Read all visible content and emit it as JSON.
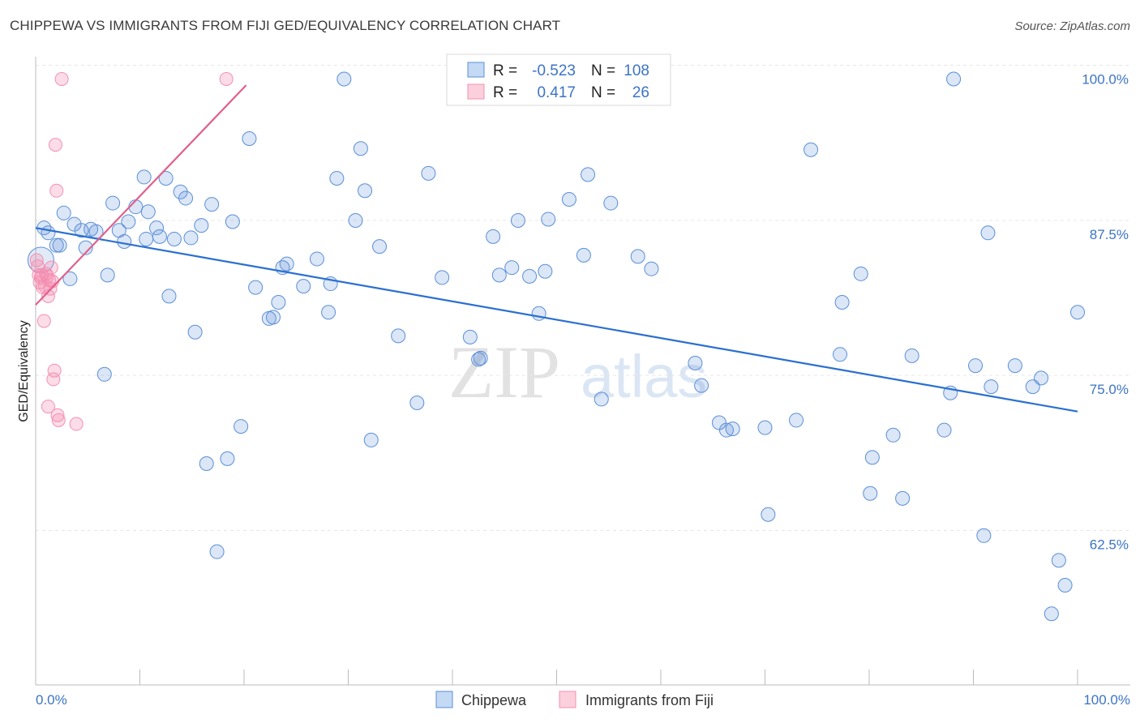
{
  "chart_data": {
    "type": "scatter",
    "title": "CHIPPEWA VS IMMIGRANTS FROM FIJI GED/EQUIVALENCY CORRELATION CHART",
    "source": "Source: ZipAtlas.com",
    "xlabel": "",
    "ylabel": "GED/Equivalency",
    "xlim": [
      0,
      100
    ],
    "ylim": [
      53,
      101
    ],
    "x_tick_labels": {
      "left": "0.0%",
      "right": "100.0%"
    },
    "y_ticks": [
      {
        "value": 62.5,
        "label": "62.5%"
      },
      {
        "value": 75.0,
        "label": "75.0%"
      },
      {
        "value": 87.5,
        "label": "87.5%"
      },
      {
        "value": 100.0,
        "label": "100.0%"
      }
    ],
    "watermark": {
      "left": "ZIP",
      "right": "atlas"
    },
    "colors": {
      "chippewa": "#5b8fd8",
      "chippewa_line": "#2a6fd0",
      "fiji": "#f48fb1",
      "fiji_line": "#e0608c",
      "tick_text": "#3c74c4"
    },
    "legend": {
      "r_label": "R =",
      "n_label": "N =",
      "entries": [
        {
          "name": "Chippewa",
          "r": "-0.523",
          "n": "108"
        },
        {
          "name": "Immigrants from Fiji",
          "r": "0.417",
          "n": "26"
        }
      ]
    },
    "series": [
      {
        "name": "Chippewa",
        "trend": {
          "x": [
            0,
            100
          ],
          "y": [
            88.0,
            73.2
          ]
        },
        "points": [
          [
            0.5,
            85.4
          ],
          [
            0.8,
            88.0
          ],
          [
            1.2,
            87.6
          ],
          [
            2.0,
            86.6
          ],
          [
            2.3,
            86.6
          ],
          [
            2.7,
            89.2
          ],
          [
            3.3,
            83.9
          ],
          [
            3.7,
            88.3
          ],
          [
            4.4,
            87.8
          ],
          [
            4.8,
            86.4
          ],
          [
            5.3,
            87.9
          ],
          [
            5.8,
            87.7
          ],
          [
            6.6,
            76.2
          ],
          [
            6.9,
            84.2
          ],
          [
            7.4,
            90.0
          ],
          [
            8.0,
            87.8
          ],
          [
            8.5,
            86.9
          ],
          [
            8.9,
            88.5
          ],
          [
            9.6,
            89.7
          ],
          [
            10.4,
            92.1
          ],
          [
            10.6,
            87.1
          ],
          [
            10.8,
            89.3
          ],
          [
            11.6,
            88.0
          ],
          [
            11.9,
            87.3
          ],
          [
            12.5,
            92.0
          ],
          [
            12.8,
            82.5
          ],
          [
            13.3,
            87.1
          ],
          [
            13.9,
            90.9
          ],
          [
            14.4,
            90.4
          ],
          [
            14.9,
            87.2
          ],
          [
            15.3,
            79.6
          ],
          [
            15.9,
            88.2
          ],
          [
            16.4,
            69.0
          ],
          [
            16.9,
            89.9
          ],
          [
            17.4,
            61.9
          ],
          [
            18.4,
            69.4
          ],
          [
            18.9,
            88.5
          ],
          [
            19.7,
            72.0
          ],
          [
            20.5,
            95.2
          ],
          [
            21.1,
            83.2
          ],
          [
            22.4,
            80.7
          ],
          [
            22.8,
            80.8
          ],
          [
            23.3,
            82.0
          ],
          [
            23.7,
            84.8
          ],
          [
            24.1,
            85.1
          ],
          [
            25.7,
            83.3
          ],
          [
            27.0,
            85.5
          ],
          [
            28.1,
            81.2
          ],
          [
            28.3,
            83.5
          ],
          [
            28.9,
            92.0
          ],
          [
            29.6,
            100.0
          ],
          [
            30.7,
            88.6
          ],
          [
            31.2,
            94.4
          ],
          [
            31.6,
            91.0
          ],
          [
            32.2,
            70.9
          ],
          [
            33.0,
            86.5
          ],
          [
            34.8,
            79.3
          ],
          [
            36.6,
            73.9
          ],
          [
            37.7,
            92.4
          ],
          [
            39.0,
            84.0
          ],
          [
            41.7,
            79.2
          ],
          [
            42.5,
            77.4
          ],
          [
            42.7,
            77.5
          ],
          [
            43.9,
            87.3
          ],
          [
            44.5,
            84.2
          ],
          [
            45.7,
            84.8
          ],
          [
            46.3,
            88.6
          ],
          [
            47.4,
            84.1
          ],
          [
            48.3,
            81.1
          ],
          [
            48.9,
            84.5
          ],
          [
            49.2,
            88.7
          ],
          [
            51.2,
            90.3
          ],
          [
            52.6,
            85.8
          ],
          [
            53.0,
            92.3
          ],
          [
            54.3,
            74.2
          ],
          [
            55.2,
            90.0
          ],
          [
            57.8,
            85.7
          ],
          [
            59.1,
            84.7
          ],
          [
            63.3,
            77.1
          ],
          [
            63.9,
            75.3
          ],
          [
            65.6,
            72.3
          ],
          [
            66.3,
            71.7
          ],
          [
            66.9,
            71.8
          ],
          [
            70.0,
            71.9
          ],
          [
            70.3,
            64.9
          ],
          [
            73.0,
            72.5
          ],
          [
            74.4,
            94.3
          ],
          [
            77.2,
            77.8
          ],
          [
            77.4,
            82.0
          ],
          [
            79.2,
            84.3
          ],
          [
            80.1,
            66.6
          ],
          [
            80.3,
            69.5
          ],
          [
            82.3,
            71.3
          ],
          [
            83.2,
            66.2
          ],
          [
            84.1,
            77.7
          ],
          [
            87.2,
            71.7
          ],
          [
            87.8,
            74.7
          ],
          [
            88.1,
            100.0
          ],
          [
            90.2,
            76.9
          ],
          [
            91.0,
            63.2
          ],
          [
            91.4,
            87.6
          ],
          [
            91.7,
            75.2
          ],
          [
            94.0,
            76.9
          ],
          [
            95.7,
            75.2
          ],
          [
            96.5,
            75.9
          ],
          [
            97.5,
            56.9
          ],
          [
            98.2,
            61.2
          ],
          [
            98.8,
            59.2
          ],
          [
            100.0,
            81.2
          ]
        ]
      },
      {
        "name": "Immigrants from Fiji",
        "trend": {
          "x": [
            0,
            20.2
          ],
          "y": [
            81.8,
            99.5
          ]
        },
        "points": [
          [
            0.1,
            85.4
          ],
          [
            0.2,
            84.9
          ],
          [
            0.3,
            84.2
          ],
          [
            0.4,
            83.6
          ],
          [
            0.5,
            84.0
          ],
          [
            0.6,
            84.2
          ],
          [
            0.7,
            83.2
          ],
          [
            0.8,
            80.5
          ],
          [
            1.0,
            84.3
          ],
          [
            1.2,
            82.5
          ],
          [
            1.3,
            83.8
          ],
          [
            1.4,
            83.1
          ],
          [
            1.5,
            84.8
          ],
          [
            1.6,
            83.7
          ],
          [
            1.2,
            73.6
          ],
          [
            1.7,
            75.8
          ],
          [
            1.8,
            76.5
          ],
          [
            1.9,
            94.7
          ],
          [
            2.0,
            91.0
          ],
          [
            2.1,
            72.9
          ],
          [
            2.2,
            72.5
          ],
          [
            2.5,
            100.0
          ],
          [
            3.9,
            72.2
          ],
          [
            18.3,
            100.0
          ],
          [
            1.1,
            84.1
          ],
          [
            0.9,
            83.3
          ]
        ]
      }
    ]
  }
}
